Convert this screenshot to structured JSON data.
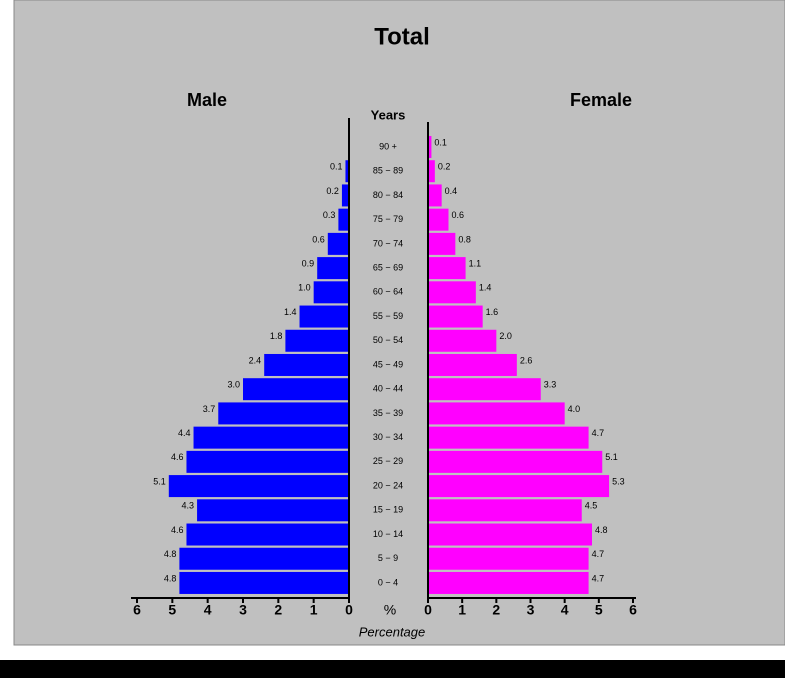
{
  "chart_data": {
    "type": "pyramid",
    "title": "Total",
    "ylabel": "Years",
    "xlabel": "Percentage",
    "center_label": "%",
    "categories": [
      "90 +",
      "85 − 89",
      "80 − 84",
      "75 − 79",
      "70 − 74",
      "65 − 69",
      "60 − 64",
      "55 − 59",
      "50 − 54",
      "45 − 49",
      "40 − 44",
      "35 − 39",
      "30 − 34",
      "25 − 29",
      "20 − 24",
      "15 − 19",
      "10 − 14",
      "5 − 9",
      "0 − 4"
    ],
    "series": [
      {
        "name": "Male",
        "color": "#0000ff",
        "values": [
          0,
          0.1,
          0.2,
          0.3,
          0.6,
          0.9,
          1.0,
          1.4,
          1.8,
          2.4,
          3.0,
          3.7,
          4.4,
          4.6,
          5.1,
          4.3,
          4.6,
          4.8,
          4.8
        ],
        "value_labels": [
          null,
          "0.1",
          "0.2",
          "0.3",
          "0.6",
          "0.9",
          "1.0",
          "1.4",
          "1.8",
          "2.4",
          "3.0",
          "3.7",
          "4.4",
          "4.6",
          "5.1",
          "4.3",
          "4.6",
          "4.8",
          "4.8"
        ]
      },
      {
        "name": "Female",
        "color": "#ff00ff",
        "values": [
          0.1,
          0.2,
          0.4,
          0.6,
          0.8,
          1.1,
          1.4,
          1.6,
          2.0,
          2.6,
          3.3,
          4.0,
          4.7,
          5.1,
          5.3,
          4.5,
          4.8,
          4.7,
          4.7
        ],
        "value_labels": [
          "0.1",
          "0.2",
          "0.4",
          "0.6",
          "0.8",
          "1.1",
          "1.4",
          "1.6",
          "2.0",
          "2.6",
          "3.3",
          "4.0",
          "4.7",
          "5.1",
          "5.3",
          "4.5",
          "4.8",
          "4.7",
          "4.7"
        ]
      }
    ],
    "xlim": [
      0,
      6
    ],
    "xticks": [
      0,
      1,
      2,
      3,
      4,
      5,
      6
    ]
  }
}
